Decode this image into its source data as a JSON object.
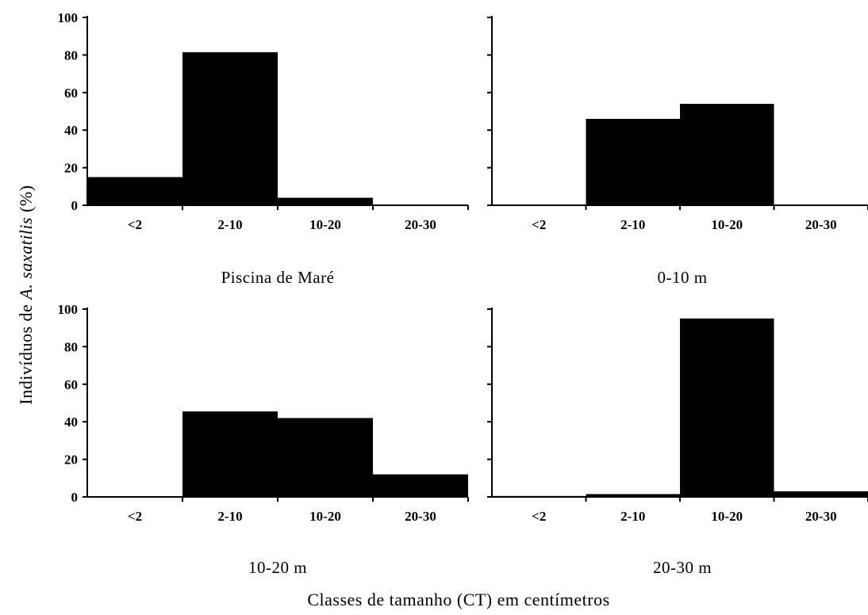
{
  "figure": {
    "ylabel_prefix": "Indivíduos de ",
    "ylabel_italic": "A. saxatilis",
    "ylabel_suffix": " (%)",
    "xlabel": "Classes de tamanho (CT) em centímetros"
  },
  "chart_data": [
    {
      "type": "bar",
      "title": "Piscina de Maré",
      "categories": [
        "<2",
        "2-10",
        "10-20",
        "20-30"
      ],
      "values": [
        15,
        81.5,
        4,
        0
      ],
      "ylim": [
        0,
        100
      ],
      "yticks": [
        0,
        20,
        40,
        60,
        80,
        100
      ],
      "bar_color": "#000000"
    },
    {
      "type": "bar",
      "title": "0-10 m",
      "categories": [
        "<2",
        "2-10",
        "10-20",
        "20-30"
      ],
      "values": [
        0,
        46,
        54,
        0
      ],
      "ylim": [
        0,
        100
      ],
      "yticks": [
        0,
        20,
        40,
        60,
        80,
        100
      ],
      "bar_color": "#000000"
    },
    {
      "type": "bar",
      "title": "10-20 m",
      "categories": [
        "<2",
        "2-10",
        "10-20",
        "20-30"
      ],
      "values": [
        0,
        45.5,
        42,
        12
      ],
      "ylim": [
        0,
        100
      ],
      "yticks": [
        0,
        20,
        40,
        60,
        80,
        100
      ],
      "bar_color": "#000000"
    },
    {
      "type": "bar",
      "title": "20-30 m",
      "categories": [
        "<2",
        "2-10",
        "10-20",
        "20-30"
      ],
      "values": [
        0.5,
        1.5,
        95,
        3
      ],
      "ylim": [
        0,
        100
      ],
      "yticks": [
        0,
        20,
        40,
        60,
        80,
        100
      ],
      "bar_color": "#000000"
    }
  ]
}
